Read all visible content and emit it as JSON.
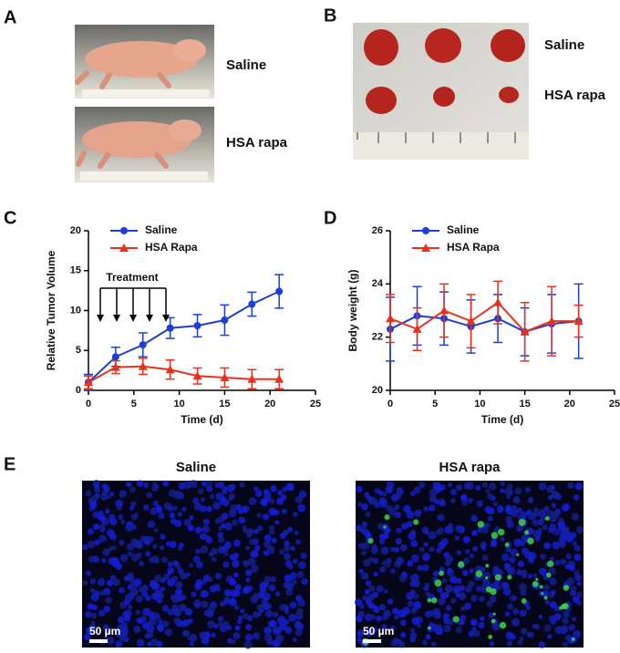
{
  "panels": {
    "a": "A",
    "b": "B",
    "c": "C",
    "d": "D",
    "e": "E"
  },
  "panel_a": {
    "labels": [
      "Saline",
      "HSA rapa"
    ]
  },
  "panel_b": {
    "labels": [
      "Saline",
      "HSA rapa"
    ]
  },
  "chart_data": [
    {
      "type": "line",
      "ylabel": "Relative Tumor Volume",
      "xlabel": "Time (d)",
      "annotation": "Treatment",
      "x": [
        0,
        3,
        6,
        9,
        12,
        15,
        18,
        21
      ],
      "series": [
        {
          "name": "Saline",
          "color": "#1f3fd0",
          "marker": "circle",
          "values": [
            1,
            4.2,
            5.7,
            7.8,
            8.1,
            8.8,
            10.8,
            12.4
          ],
          "errors": [
            1,
            1.2,
            1.5,
            1.3,
            1.4,
            1.9,
            1.5,
            2.1
          ]
        },
        {
          "name": "HSA Rapa",
          "color": "#e8321e",
          "marker": "triangle",
          "values": [
            1,
            2.9,
            3.0,
            2.6,
            1.8,
            1.6,
            1.4,
            1.4
          ],
          "errors": [
            0.8,
            0.8,
            1.0,
            1.2,
            1.0,
            1.2,
            1.2,
            1.2
          ]
        }
      ],
      "xlim": [
        0,
        25
      ],
      "xticks": [
        0,
        5,
        10,
        15,
        20,
        25
      ],
      "ylim": [
        0,
        20
      ],
      "yticks": [
        0,
        5,
        10,
        15,
        20
      ]
    },
    {
      "type": "line",
      "ylabel": "Body weight (g)",
      "xlabel": "Time (d)",
      "x": [
        0,
        3,
        6,
        9,
        12,
        15,
        18,
        21
      ],
      "series": [
        {
          "name": "Saline",
          "color": "#1f3fd0",
          "marker": "circle",
          "values": [
            22.3,
            22.8,
            22.7,
            22.4,
            22.7,
            22.2,
            22.5,
            22.6
          ],
          "errors": [
            1.2,
            1.1,
            1.0,
            1.0,
            0.9,
            0.9,
            1.1,
            1.4
          ]
        },
        {
          "name": "HSA Rapa",
          "color": "#e8321e",
          "marker": "triangle",
          "values": [
            22.7,
            22.3,
            23.0,
            22.6,
            23.3,
            22.2,
            22.6,
            22.6
          ],
          "errors": [
            0.9,
            0.8,
            1.0,
            1.0,
            0.8,
            1.1,
            1.3,
            0.6
          ]
        }
      ],
      "xlim": [
        0,
        25
      ],
      "xticks": [
        0,
        5,
        10,
        15,
        20,
        25
      ],
      "ylim": [
        20,
        26
      ],
      "yticks": [
        20,
        22,
        24,
        26
      ]
    }
  ],
  "panel_e": {
    "titles": [
      "Saline",
      "HSA rapa"
    ],
    "scale_bar": "50 µm"
  }
}
